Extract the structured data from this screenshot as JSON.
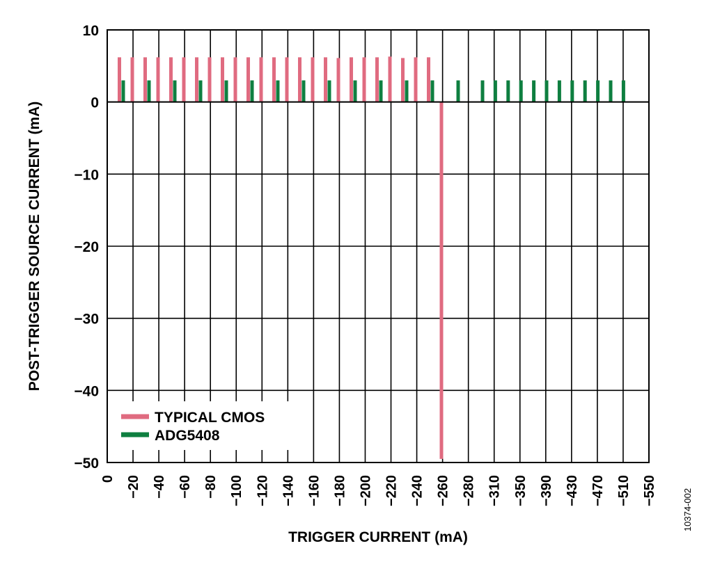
{
  "chart_data": {
    "type": "bar",
    "xlabel": "TRIGGER CURRENT (mA)",
    "ylabel": "POST-TRIGGER SOURCE CURRENT (mA)",
    "ylim": [
      -50,
      10
    ],
    "yticks": [
      "10",
      "0",
      "−10",
      "−20",
      "−30",
      "−40",
      "−50"
    ],
    "ytick_values": [
      10,
      0,
      -10,
      -20,
      -30,
      -40,
      -50
    ],
    "xtick_labels": [
      "0",
      "−20",
      "−40",
      "−60",
      "−80",
      "−100",
      "−120",
      "−140",
      "−160",
      "−180",
      "−200",
      "−220",
      "−240",
      "−260",
      "−280",
      "−310",
      "−350",
      "−390",
      "−430",
      "−470",
      "−510",
      "−550"
    ],
    "grid": true,
    "legend_position": "bottom-left",
    "figure_id": "10374-002",
    "series": [
      {
        "name": "TYPICAL CMOS",
        "color": "#e06b80",
        "values": [
          6.2,
          6.2,
          6.2,
          6.2,
          6.2,
          6.2,
          6.2,
          6.2,
          6.2,
          6.2,
          6.2,
          6.2,
          6.2,
          6.2,
          6.2,
          6.2,
          6.2,
          6.1,
          6.2,
          6.2,
          6.2,
          6.3,
          6.1,
          6.2,
          6.2,
          -49.5
        ]
      },
      {
        "name": "ADG5408",
        "color": "#0e7f40",
        "values": [
          3,
          3,
          3,
          3,
          3,
          3,
          3,
          3,
          3,
          3,
          3,
          3,
          3,
          3,
          3,
          3,
          3,
          3,
          3,
          3,
          3,
          3,
          3,
          3,
          3,
          3,
          3,
          3,
          3,
          3,
          3,
          3,
          3,
          3,
          3,
          3,
          3,
          3,
          3,
          3,
          3,
          3,
          3,
          3
        ]
      }
    ]
  }
}
